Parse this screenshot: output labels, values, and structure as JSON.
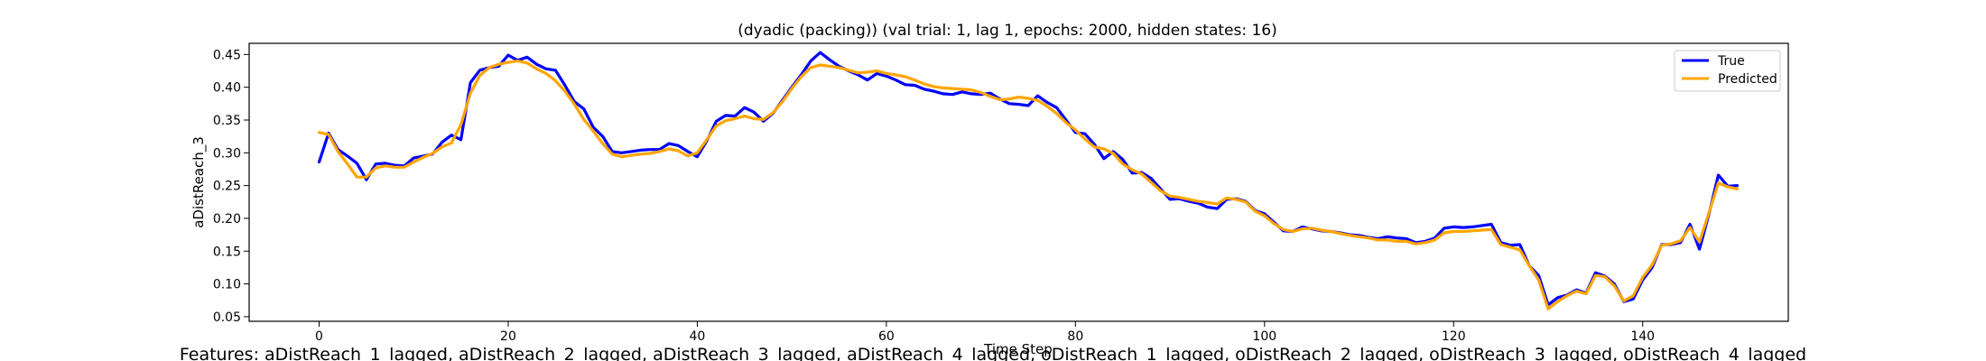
{
  "caption": "Features: aDistReach_1_lagged, aDistReach_2_lagged, aDistReach_3_lagged, aDistReach_4_lagged, oDistReach_1_lagged, oDistReach_2_lagged, oDistReach_3_lagged, oDistReach_4_lagged",
  "chart_data": {
    "type": "line",
    "title": "(dyadic (packing)) (val trial: 1, lag 1, epochs: 2000, hidden states: 16)",
    "xlabel": "Time Step",
    "ylabel": "aDistReach_3",
    "xlim": [
      -7.4,
      155.4
    ],
    "ylim": [
      0.043,
      0.467
    ],
    "xticks": [
      0,
      20,
      40,
      60,
      80,
      100,
      120,
      140
    ],
    "yticks": [
      0.05,
      0.1,
      0.15,
      0.2,
      0.25,
      0.3,
      0.35,
      0.4,
      0.45
    ],
    "ytick_labels": [
      "0.05",
      "0.10",
      "0.15",
      "0.20",
      "0.25",
      "0.30",
      "0.35",
      "0.40",
      "0.45"
    ],
    "legend_position": "top-right",
    "series": [
      {
        "name": "True",
        "color": "#0000ff",
        "values": [
          0.286,
          0.33,
          0.305,
          0.295,
          0.284,
          0.259,
          0.283,
          0.284,
          0.281,
          0.28,
          0.292,
          0.295,
          0.298,
          0.316,
          0.327,
          0.32,
          0.407,
          0.426,
          0.43,
          0.432,
          0.449,
          0.441,
          0.446,
          0.435,
          0.428,
          0.426,
          0.403,
          0.378,
          0.367,
          0.339,
          0.325,
          0.302,
          0.3,
          0.302,
          0.304,
          0.305,
          0.305,
          0.314,
          0.311,
          0.302,
          0.294,
          0.318,
          0.348,
          0.357,
          0.356,
          0.369,
          0.362,
          0.348,
          0.36,
          0.38,
          0.4,
          0.419,
          0.44,
          0.453,
          0.442,
          0.432,
          0.425,
          0.419,
          0.411,
          0.421,
          0.417,
          0.411,
          0.404,
          0.403,
          0.397,
          0.394,
          0.39,
          0.389,
          0.393,
          0.39,
          0.389,
          0.391,
          0.382,
          0.375,
          0.374,
          0.372,
          0.387,
          0.377,
          0.369,
          0.35,
          0.331,
          0.329,
          0.313,
          0.291,
          0.302,
          0.29,
          0.269,
          0.27,
          0.261,
          0.245,
          0.229,
          0.23,
          0.226,
          0.223,
          0.217,
          0.215,
          0.229,
          0.23,
          0.226,
          0.212,
          0.207,
          0.194,
          0.181,
          0.18,
          0.187,
          0.184,
          0.181,
          0.18,
          0.178,
          0.175,
          0.174,
          0.171,
          0.169,
          0.172,
          0.17,
          0.169,
          0.163,
          0.165,
          0.17,
          0.185,
          0.187,
          0.186,
          0.187,
          0.189,
          0.191,
          0.163,
          0.159,
          0.16,
          0.128,
          0.113,
          0.068,
          0.079,
          0.083,
          0.091,
          0.086,
          0.117,
          0.112,
          0.1,
          0.073,
          0.077,
          0.106,
          0.125,
          0.16,
          0.16,
          0.163,
          0.191,
          0.153,
          0.206,
          0.266,
          0.249,
          0.25
        ]
      },
      {
        "name": "Predicted",
        "color": "#ffa500",
        "values": [
          0.331,
          0.328,
          0.302,
          0.283,
          0.263,
          0.263,
          0.277,
          0.28,
          0.278,
          0.278,
          0.286,
          0.293,
          0.299,
          0.309,
          0.315,
          0.343,
          0.391,
          0.418,
          0.43,
          0.435,
          0.438,
          0.44,
          0.437,
          0.428,
          0.421,
          0.41,
          0.394,
          0.374,
          0.351,
          0.333,
          0.314,
          0.298,
          0.294,
          0.296,
          0.298,
          0.299,
          0.302,
          0.306,
          0.303,
          0.295,
          0.3,
          0.32,
          0.341,
          0.349,
          0.352,
          0.356,
          0.352,
          0.351,
          0.361,
          0.378,
          0.398,
          0.416,
          0.43,
          0.434,
          0.432,
          0.43,
          0.426,
          0.422,
          0.423,
          0.425,
          0.421,
          0.419,
          0.416,
          0.411,
          0.405,
          0.401,
          0.399,
          0.398,
          0.397,
          0.396,
          0.392,
          0.386,
          0.381,
          0.382,
          0.385,
          0.383,
          0.38,
          0.371,
          0.36,
          0.346,
          0.335,
          0.321,
          0.309,
          0.306,
          0.299,
          0.283,
          0.274,
          0.268,
          0.255,
          0.242,
          0.234,
          0.232,
          0.229,
          0.226,
          0.224,
          0.222,
          0.231,
          0.229,
          0.225,
          0.211,
          0.204,
          0.192,
          0.183,
          0.18,
          0.184,
          0.185,
          0.182,
          0.18,
          0.177,
          0.174,
          0.172,
          0.17,
          0.167,
          0.167,
          0.165,
          0.165,
          0.161,
          0.163,
          0.167,
          0.178,
          0.18,
          0.18,
          0.181,
          0.182,
          0.183,
          0.16,
          0.156,
          0.152,
          0.128,
          0.106,
          0.062,
          0.073,
          0.082,
          0.089,
          0.085,
          0.113,
          0.111,
          0.097,
          0.074,
          0.082,
          0.11,
          0.129,
          0.159,
          0.161,
          0.166,
          0.186,
          0.164,
          0.208,
          0.254,
          0.248,
          0.245
        ]
      }
    ]
  }
}
